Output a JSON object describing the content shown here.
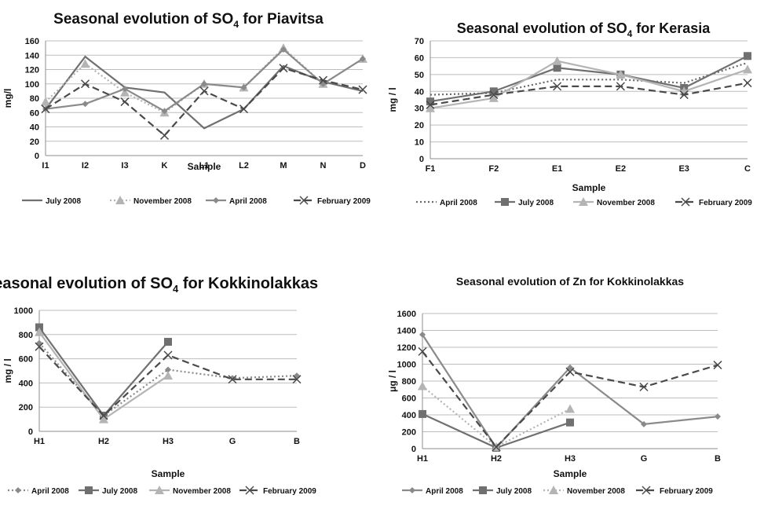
{
  "chart_data": [
    {
      "type": "line",
      "title": "Seasonal evolution of SO",
      "title_sub": "4",
      "title_tail": " for Piavitsa",
      "xlabel": "Sample",
      "ylabel": "mg/l",
      "categories": [
        "I1",
        "I2",
        "I3",
        "K",
        "L1",
        "L2",
        "M",
        "N",
        "D"
      ],
      "ylim": [
        0,
        160
      ],
      "yticks": [
        0,
        20,
        40,
        60,
        80,
        100,
        120,
        140,
        160
      ],
      "grid": true,
      "legend_position": "bottom",
      "series": [
        {
          "name": "July 2008",
          "color": "#707070",
          "dash": "",
          "marker": "none",
          "values": [
            65,
            138,
            95,
            88,
            38,
            65,
            125,
            103,
            90
          ]
        },
        {
          "name": "November 2008",
          "color": "#b4b4b4",
          "dash": "2,3",
          "marker": "triangle",
          "values": [
            75,
            128,
            88,
            60,
            100,
            95,
            150,
            100,
            135
          ]
        },
        {
          "name": "April 2008",
          "color": "#8a8a8a",
          "dash": "",
          "marker": "diamond",
          "values": [
            65,
            72,
            93,
            62,
            100,
            95,
            148,
            100,
            135
          ]
        },
        {
          "name": "February 2009",
          "color": "#4a4a4a",
          "dash": "9,5",
          "marker": "x",
          "values": [
            65,
            100,
            75,
            28,
            90,
            65,
            122,
            105,
            92
          ]
        }
      ]
    },
    {
      "type": "line",
      "title": "Seasonal evolution of SO",
      "title_sub": "4",
      "title_tail": " for Kerasia",
      "xlabel": "Sample",
      "ylabel": "mg / l",
      "categories": [
        "F1",
        "F2",
        "E1",
        "E2",
        "E3",
        "C"
      ],
      "ylim": [
        0,
        70
      ],
      "yticks": [
        0,
        10,
        20,
        30,
        40,
        50,
        60,
        70
      ],
      "grid": true,
      "legend_position": "bottom",
      "series": [
        {
          "name": "April 2008",
          "color": "#6a6a6a",
          "dash": "2,3",
          "marker": "none",
          "values": [
            38,
            39,
            47,
            47,
            45,
            57
          ]
        },
        {
          "name": "July 2008",
          "color": "#707070",
          "dash": "",
          "marker": "square",
          "values": [
            34,
            40,
            54,
            50,
            42,
            61
          ]
        },
        {
          "name": "November 2008",
          "color": "#b4b4b4",
          "dash": "",
          "marker": "triangle",
          "values": [
            30,
            36,
            58,
            50,
            40,
            53
          ]
        },
        {
          "name": "February 2009",
          "color": "#4a4a4a",
          "dash": "9,5",
          "marker": "x",
          "values": [
            32,
            38,
            43,
            43,
            38,
            45
          ]
        }
      ]
    },
    {
      "type": "line",
      "title": "Seasonal evolution of SO",
      "title_sub": "4",
      "title_tail": " for Kokkinolakkas",
      "xlabel": "Sample",
      "ylabel": "mg / l",
      "categories": [
        "H1",
        "H2",
        "H3",
        "G",
        "B"
      ],
      "ylim": [
        0,
        1000
      ],
      "yticks": [
        0,
        200,
        400,
        600,
        800,
        1000
      ],
      "grid": true,
      "legend_position": "bottom",
      "series": [
        {
          "name": "April 2008",
          "color": "#8a8a8a",
          "dash": "2,3",
          "marker": "diamond",
          "values": [
            730,
            130,
            510,
            440,
            460
          ]
        },
        {
          "name": "July 2008",
          "color": "#707070",
          "dash": "",
          "marker": "square",
          "values": [
            860,
            130,
            740,
            null,
            null
          ]
        },
        {
          "name": "November 2008",
          "color": "#b4b4b4",
          "dash": "",
          "marker": "triangle",
          "values": [
            820,
            100,
            460,
            null,
            null
          ]
        },
        {
          "name": "February 2009",
          "color": "#4a4a4a",
          "dash": "9,5",
          "marker": "x",
          "values": [
            700,
            130,
            630,
            430,
            430
          ]
        }
      ]
    },
    {
      "type": "line",
      "title": "Seasonal evolution of Zn for Kokkinolakkas",
      "title_sub": "",
      "title_tail": "",
      "xlabel": "Sample",
      "ylabel": "μg / l",
      "categories": [
        "H1",
        "H2",
        "H3",
        "G",
        "B"
      ],
      "ylim": [
        0,
        1600
      ],
      "yticks": [
        0,
        200,
        400,
        600,
        800,
        1000,
        1200,
        1400,
        1600
      ],
      "grid": true,
      "legend_position": "bottom",
      "series": [
        {
          "name": "April 2008",
          "color": "#8a8a8a",
          "dash": "",
          "marker": "diamond",
          "values": [
            1350,
            10,
            960,
            290,
            380
          ]
        },
        {
          "name": "July 2008",
          "color": "#707070",
          "dash": "",
          "marker": "square",
          "values": [
            410,
            10,
            310,
            null,
            null
          ]
        },
        {
          "name": "November 2008",
          "color": "#b4b4b4",
          "dash": "2,3",
          "marker": "triangle",
          "values": [
            740,
            20,
            470,
            null,
            null
          ]
        },
        {
          "name": "February 2009",
          "color": "#4a4a4a",
          "dash": "9,5",
          "marker": "x",
          "values": [
            1150,
            20,
            910,
            730,
            990
          ]
        }
      ]
    }
  ]
}
